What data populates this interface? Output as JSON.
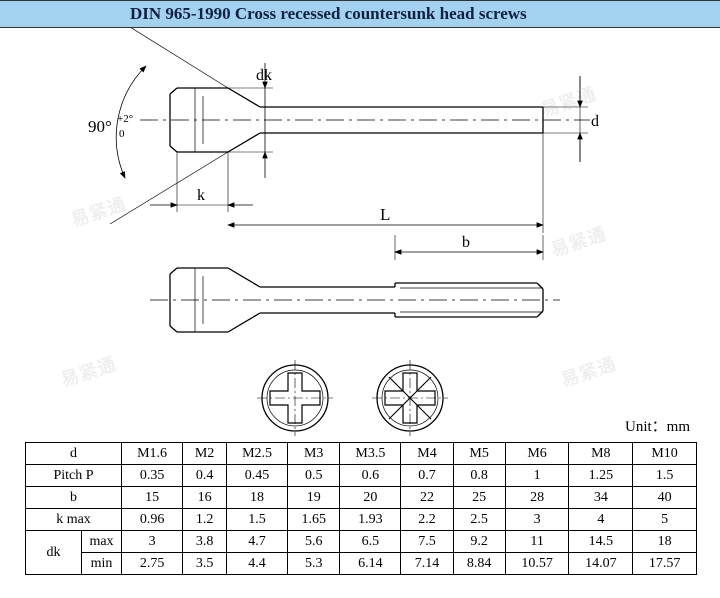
{
  "header": {
    "title": "DIN 965-1990 Cross recessed countersunk head screws"
  },
  "unit_label": "Unit：mm",
  "diagram": {
    "angle_label": "90°",
    "angle_tol_upper": "+2°",
    "angle_tol_lower": "0",
    "dim_dk": "dk",
    "dim_d": "d",
    "dim_k": "k",
    "dim_L": "L",
    "dim_b": "b",
    "stroke": "#000000",
    "bg": "#ffffff"
  },
  "table": {
    "columns": [
      "M1.6",
      "M2",
      "M2.5",
      "M3",
      "M3.5",
      "M4",
      "M5",
      "M6",
      "M8",
      "M10"
    ],
    "col_min_width": 55,
    "rows": [
      {
        "label": "d",
        "values": [
          "M1.6",
          "M2",
          "M2.5",
          "M3",
          "M3.5",
          "M4",
          "M5",
          "M6",
          "M8",
          "M10"
        ]
      },
      {
        "label": "Pitch P",
        "values": [
          "0.35",
          "0.4",
          "0.45",
          "0.5",
          "0.6",
          "0.7",
          "0.8",
          "1",
          "1.25",
          "1.5"
        ]
      },
      {
        "label": "b",
        "values": [
          "15",
          "16",
          "18",
          "19",
          "20",
          "22",
          "25",
          "28",
          "34",
          "40"
        ]
      },
      {
        "label": "k max",
        "values": [
          "0.96",
          "1.2",
          "1.5",
          "1.65",
          "1.93",
          "2.2",
          "2.5",
          "3",
          "4",
          "5"
        ]
      }
    ],
    "dk_row": {
      "label": "dk",
      "max": [
        "3",
        "3.8",
        "4.7",
        "5.6",
        "6.5",
        "7.5",
        "9.2",
        "11",
        "14.5",
        "18"
      ],
      "min": [
        "2.75",
        "3.5",
        "4.4",
        "5.3",
        "6.14",
        "7.14",
        "8.84",
        "10.57",
        "14.07",
        "17.57"
      ]
    }
  },
  "watermark": "易紧通"
}
